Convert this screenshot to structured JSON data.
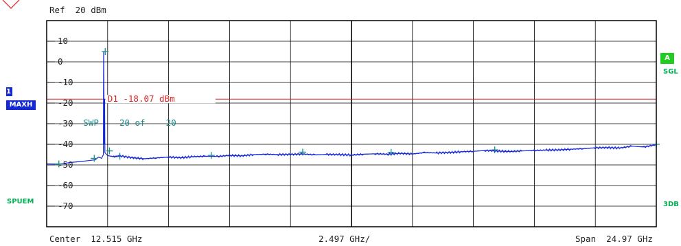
{
  "header": {
    "ref_level": "Ref  20 dBm"
  },
  "left_panel": {
    "trace_number": "1",
    "trace_mode": "MAXH",
    "mode_label": "SPUEM"
  },
  "right_panel": {
    "trace_indicator": "A",
    "sweep_mode": "SGL",
    "bandwidth_label": "3DB"
  },
  "footer": {
    "center": "Center  12.515 GHz",
    "per_div": "2.497 GHz/",
    "span": "Span  24.97 GHz"
  },
  "display_line": {
    "label": "D1 -18.07 dBm",
    "value": -18.07,
    "color": "#d62020"
  },
  "sweep_status": "SWP    20 of    20",
  "colors": {
    "trace": "#1428d6",
    "marker": "#1e8c8c",
    "grid": "#000000",
    "badge_blue": "#1428d6",
    "badge_green": "#22cc22"
  },
  "chart_data": {
    "type": "line",
    "y_tick_labels": [
      "10",
      "0",
      "-10",
      "-20",
      "-30",
      "-40",
      "-50",
      "-60",
      "-70"
    ],
    "y_ticks": [
      10,
      0,
      -10,
      -20,
      -30,
      -40,
      -50,
      -60,
      -70
    ],
    "ylim": [
      -80,
      20
    ],
    "xlim": [
      0,
      10
    ],
    "x_unit": "grid divisions (2.497 GHz/div)",
    "series": [
      {
        "points": [
          [
            0.0,
            -49.5
          ],
          [
            0.2,
            -49.6
          ],
          [
            0.4,
            -48.8
          ],
          [
            0.6,
            -48.2
          ],
          [
            0.8,
            -47.5
          ],
          [
            0.85,
            -46.2
          ],
          [
            0.9,
            -46.8
          ],
          [
            0.93,
            -45.0
          ],
          [
            0.935,
            5
          ],
          [
            0.945,
            -40
          ],
          [
            0.95,
            -18
          ],
          [
            0.955,
            -44
          ],
          [
            1.0,
            -45.5
          ],
          [
            1.1,
            -46.0
          ],
          [
            1.2,
            -45.6
          ],
          [
            1.4,
            -46.5
          ],
          [
            1.6,
            -47.0
          ],
          [
            1.8,
            -46.6
          ],
          [
            2.0,
            -46.2
          ],
          [
            2.2,
            -46.5
          ],
          [
            2.4,
            -46.0
          ],
          [
            2.6,
            -45.8
          ],
          [
            2.8,
            -45.9
          ],
          [
            3.0,
            -45.4
          ],
          [
            3.2,
            -45.6
          ],
          [
            3.4,
            -45.0
          ],
          [
            3.6,
            -44.8
          ],
          [
            3.8,
            -45.0
          ],
          [
            4.0,
            -44.9
          ],
          [
            4.2,
            -44.7
          ],
          [
            4.4,
            -45.1
          ],
          [
            4.6,
            -44.9
          ],
          [
            4.8,
            -45.0
          ],
          [
            5.0,
            -45.2
          ],
          [
            5.2,
            -44.8
          ],
          [
            5.4,
            -44.6
          ],
          [
            5.6,
            -44.8
          ],
          [
            5.8,
            -44.4
          ],
          [
            6.0,
            -44.7
          ],
          [
            6.2,
            -44.0
          ],
          [
            6.4,
            -44.2
          ],
          [
            6.6,
            -44.0
          ],
          [
            6.8,
            -43.6
          ],
          [
            7.0,
            -43.4
          ],
          [
            7.2,
            -43.0
          ],
          [
            7.4,
            -43.3
          ],
          [
            7.6,
            -43.5
          ],
          [
            7.8,
            -43.2
          ],
          [
            8.0,
            -43.0
          ],
          [
            8.2,
            -42.8
          ],
          [
            8.4,
            -42.7
          ],
          [
            8.6,
            -42.4
          ],
          [
            8.8,
            -42.1
          ],
          [
            9.0,
            -41.7
          ],
          [
            9.2,
            -41.6
          ],
          [
            9.4,
            -41.8
          ],
          [
            9.6,
            -40.9
          ],
          [
            9.8,
            -41.3
          ],
          [
            10.0,
            -40.2
          ]
        ]
      }
    ],
    "markers": [
      [
        0.2,
        -49.5
      ],
      [
        0.78,
        -46.8
      ],
      [
        0.96,
        5
      ],
      [
        1.03,
        -43.2
      ],
      [
        1.2,
        -45.8
      ],
      [
        2.7,
        -45.4
      ],
      [
        4.2,
        -43.8
      ],
      [
        5.65,
        -43.9
      ],
      [
        7.35,
        -42.7
      ],
      [
        10.0,
        -40.0
      ]
    ]
  }
}
